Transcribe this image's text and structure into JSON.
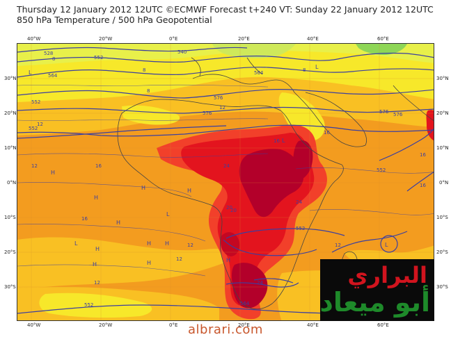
{
  "header": {
    "line1": "Thursday 12 January 2012 12UTC ©ECMWF Forecast t+240 VT: Sunday 22 January 2012 12UTC",
    "line2": "850 hPa Temperature / 500 hPa Geopotential"
  },
  "axes": {
    "lon_top": [
      "40°W",
      "20°W",
      "0°E",
      "20°E",
      "40°E",
      "60°E"
    ],
    "lon_bottom": [
      "40°W",
      "20°W",
      "0°E",
      "20°E",
      "40°E",
      "60°E"
    ],
    "lat_left": [
      "30°N",
      "20°N",
      "10°N",
      "0°N",
      "10°S",
      "20°S",
      "30°S"
    ],
    "lat_right": [
      "30°N",
      "20°N",
      "10°N",
      "0°N",
      "10°S",
      "20°S",
      "30°S"
    ]
  },
  "contour_labels": {
    "geopotential": [
      "528",
      "540",
      "552",
      "564",
      "576",
      "552",
      "552",
      "576",
      "576",
      "552",
      "564",
      "576",
      "552",
      "552",
      "564"
    ],
    "temperature": [
      "8",
      "8",
      "12",
      "12",
      "16",
      "16",
      "16",
      "20",
      "24",
      "24",
      "24",
      "16",
      "12",
      "12",
      "12",
      "16",
      "12",
      "8",
      "8",
      "16",
      "12",
      "20"
    ]
  },
  "pressure_markers": [
    "L",
    "L",
    "L",
    "L",
    "H",
    "H",
    "H",
    "H",
    "H",
    "H",
    "H",
    "H",
    "H",
    "H",
    "L",
    "L",
    "H"
  ],
  "logo": {
    "top_text": "البراري",
    "bottom_text": "أبو ميعاد"
  },
  "footer": {
    "site": "albrari.com"
  },
  "colors": {
    "very_hot": "#b3002a",
    "hot": "#e3141e",
    "warm_red": "#f2402a",
    "orange": "#f39c1f",
    "light_orange": "#f9c023",
    "yellow": "#f7e82a",
    "light_yellow": "#e8f04a",
    "green": "#8ed657",
    "contour": "#3b3fa0",
    "coast": "#444444",
    "logo_red": "#d1141e",
    "logo_green": "#1e8a2a",
    "site_text": "#c8572d"
  }
}
